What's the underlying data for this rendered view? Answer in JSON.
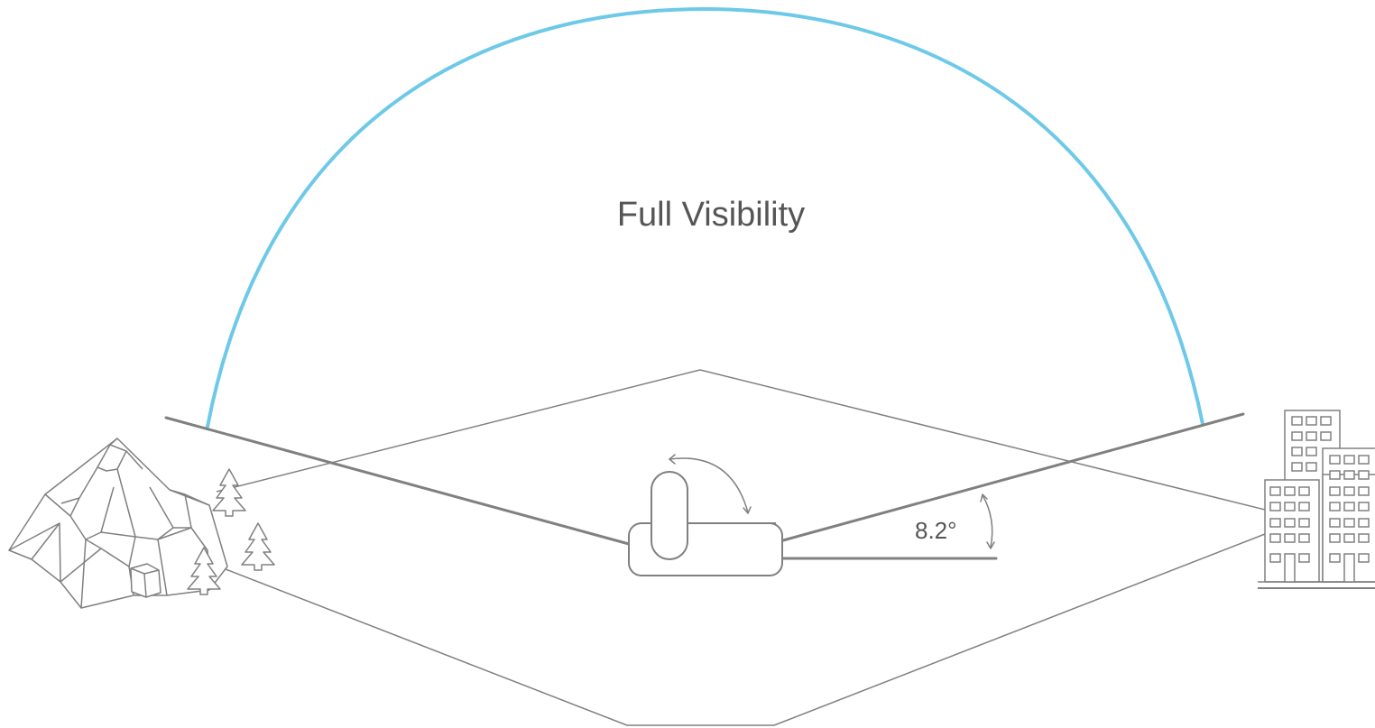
{
  "diagram": {
    "title": "Full Visibility",
    "angle_label": "8.2°"
  },
  "colors": {
    "arc": "#6ec9e8",
    "line": "#808080",
    "text": "#555555",
    "background": "#ffffff"
  },
  "icons": [
    "mountain-icon",
    "tree-icon",
    "building-icon",
    "camera-device-icon",
    "rotation-arrow-icon",
    "angle-arrow-icon"
  ]
}
